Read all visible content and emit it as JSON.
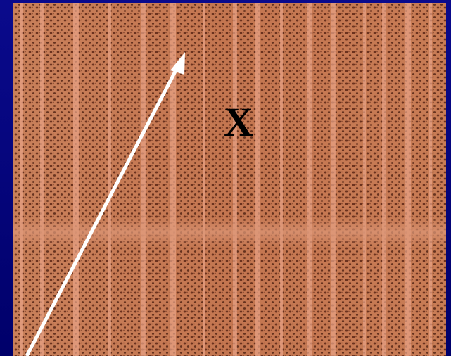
{
  "label": "X"
}
